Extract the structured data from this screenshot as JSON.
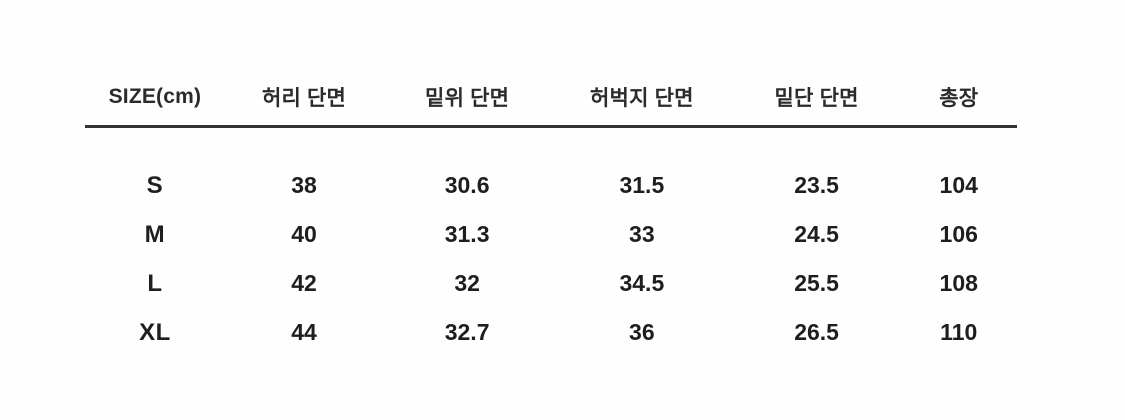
{
  "table": {
    "columns": [
      "SIZE(cm)",
      "허리 단면",
      "밑위 단면",
      "허벅지 단면",
      "밑단 단면",
      "총장"
    ],
    "rows": [
      {
        "cells": [
          "S",
          "38",
          "30.6",
          "31.5",
          "23.5",
          "104"
        ]
      },
      {
        "cells": [
          "M",
          "40",
          "31.3",
          "33",
          "24.5",
          "106"
        ]
      },
      {
        "cells": [
          "L",
          "42",
          "32",
          "34.5",
          "25.5",
          "108"
        ]
      },
      {
        "cells": [
          "XL",
          "44",
          "32.7",
          "36",
          "26.5",
          "110"
        ]
      }
    ]
  },
  "chart_data": {
    "type": "table",
    "title": "",
    "unit": "cm",
    "columns": [
      "SIZE(cm)",
      "허리 단면",
      "밑위 단면",
      "허벅지 단면",
      "밑단 단면",
      "총장"
    ],
    "rows": [
      [
        "S",
        38,
        30.6,
        31.5,
        23.5,
        104
      ],
      [
        "M",
        40,
        31.3,
        33,
        24.5,
        106
      ],
      [
        "L",
        42,
        32,
        34.5,
        25.5,
        108
      ],
      [
        "XL",
        44,
        32.7,
        36,
        26.5,
        110
      ]
    ]
  },
  "colors": {
    "background": "#fefefe",
    "text": "#1e1e1e",
    "header_text": "#2b2b2b",
    "rule": "#333333"
  }
}
